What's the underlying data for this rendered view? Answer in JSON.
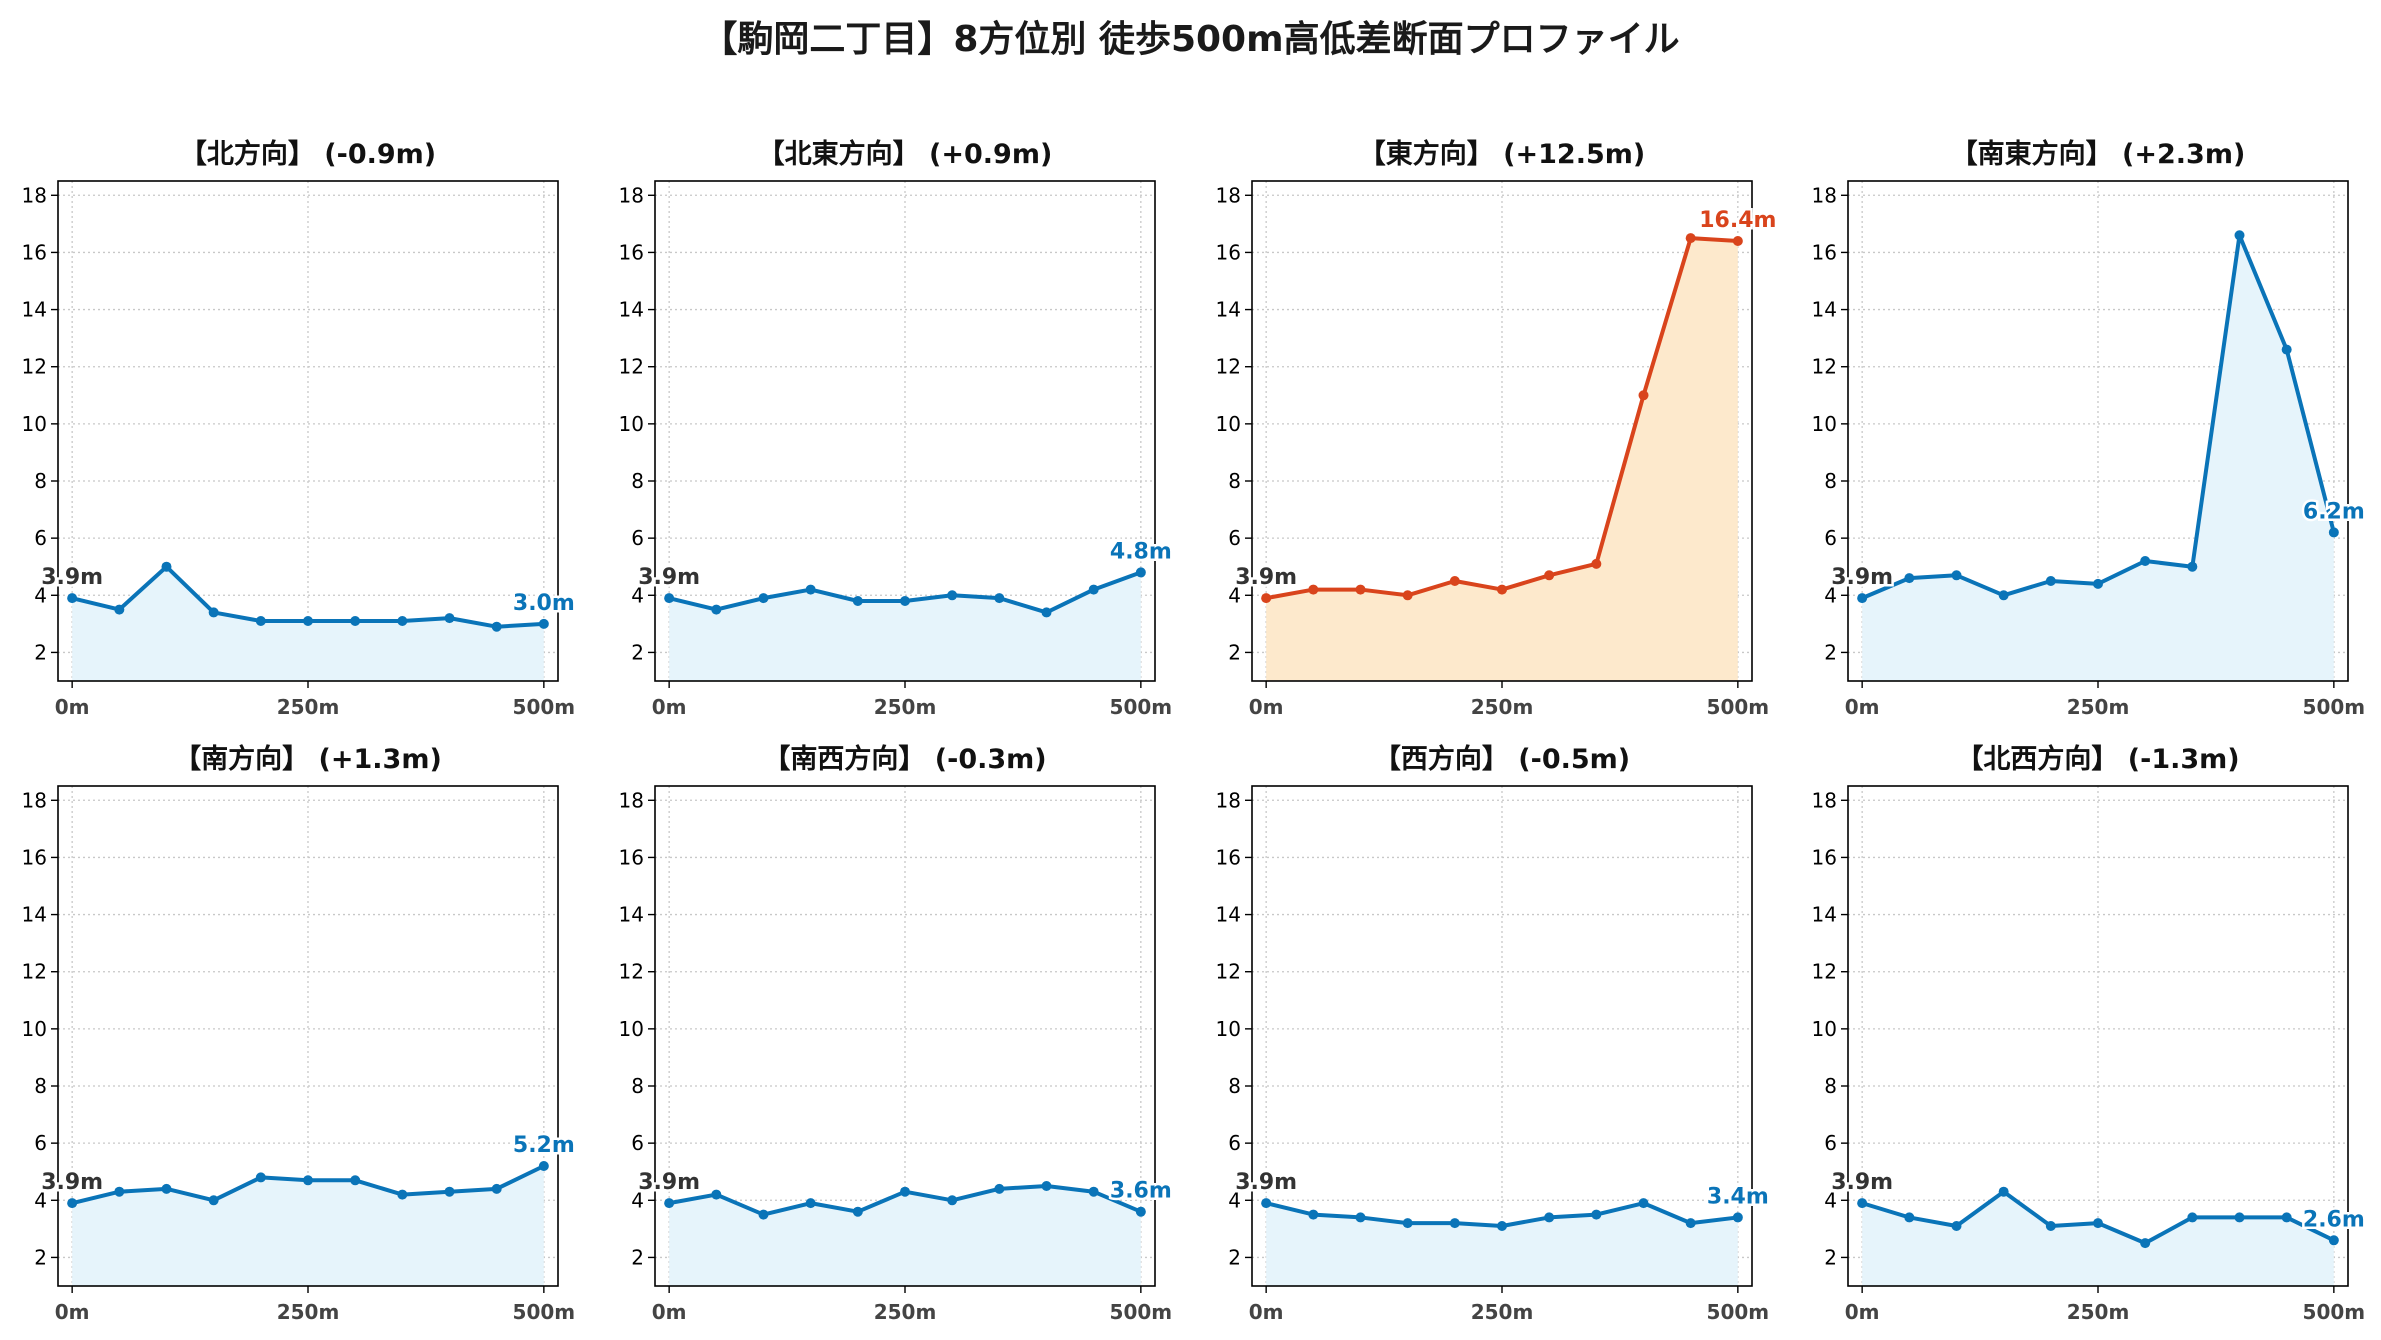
{
  "title": "【駒岡二丁目】8方位別 徒歩500m高低差断面プロファイル",
  "colors": {
    "normal_line": "#0a74b8",
    "normal_fill": "#e6f4fb",
    "highlight_line": "#d9441c",
    "highlight_fill": "#fde9cc",
    "start_label": "#333333",
    "axis": "#000000",
    "grid": "#c8c8c8",
    "tick_label": "#444444"
  },
  "chart_data": [
    {
      "type": "area",
      "title": "【北方向】 (-0.9m)",
      "x": [
        0,
        50,
        100,
        150,
        200,
        250,
        300,
        350,
        400,
        450,
        500
      ],
      "y": [
        3.9,
        3.5,
        5.0,
        3.4,
        3.1,
        3.1,
        3.1,
        3.1,
        3.2,
        2.9,
        3.0
      ],
      "start_label": "3.9m",
      "end_label": "3.0m",
      "highlight": false,
      "xticks": [
        "0m",
        "250m",
        "500m"
      ],
      "yticks": [
        2,
        4,
        6,
        8,
        10,
        12,
        14,
        16,
        18
      ],
      "xlim": [
        -15,
        515
      ],
      "ylim": [
        1.0,
        18.5
      ],
      "grid": true
    },
    {
      "type": "area",
      "title": "【北東方向】 (+0.9m)",
      "x": [
        0,
        50,
        100,
        150,
        200,
        250,
        300,
        350,
        400,
        450,
        500
      ],
      "y": [
        3.9,
        3.5,
        3.9,
        4.2,
        3.8,
        3.8,
        4.0,
        3.9,
        3.4,
        4.2,
        4.8
      ],
      "start_label": "3.9m",
      "end_label": "4.8m",
      "highlight": false,
      "xticks": [
        "0m",
        "250m",
        "500m"
      ],
      "yticks": [
        2,
        4,
        6,
        8,
        10,
        12,
        14,
        16,
        18
      ],
      "xlim": [
        -15,
        515
      ],
      "ylim": [
        1.0,
        18.5
      ],
      "grid": true
    },
    {
      "type": "area",
      "title": "【東方向】 (+12.5m)",
      "x": [
        0,
        50,
        100,
        150,
        200,
        250,
        300,
        350,
        400,
        450,
        500
      ],
      "y": [
        3.9,
        4.2,
        4.2,
        4.0,
        4.5,
        4.2,
        4.7,
        5.1,
        11.0,
        16.5,
        16.4
      ],
      "start_label": "3.9m",
      "end_label": "16.4m",
      "highlight": true,
      "xticks": [
        "0m",
        "250m",
        "500m"
      ],
      "yticks": [
        2,
        4,
        6,
        8,
        10,
        12,
        14,
        16,
        18
      ],
      "xlim": [
        -15,
        515
      ],
      "ylim": [
        1.0,
        18.5
      ],
      "grid": true
    },
    {
      "type": "area",
      "title": "【南東方向】 (+2.3m)",
      "x": [
        0,
        50,
        100,
        150,
        200,
        250,
        300,
        350,
        400,
        450,
        500
      ],
      "y": [
        3.9,
        4.6,
        4.7,
        4.0,
        4.5,
        4.4,
        5.2,
        5.0,
        16.6,
        12.6,
        6.2
      ],
      "start_label": "3.9m",
      "end_label": "6.2m",
      "highlight": false,
      "xticks": [
        "0m",
        "250m",
        "500m"
      ],
      "yticks": [
        2,
        4,
        6,
        8,
        10,
        12,
        14,
        16,
        18
      ],
      "xlim": [
        -15,
        515
      ],
      "ylim": [
        1.0,
        18.5
      ],
      "grid": true
    },
    {
      "type": "area",
      "title": "【南方向】 (+1.3m)",
      "x": [
        0,
        50,
        100,
        150,
        200,
        250,
        300,
        350,
        400,
        450,
        500
      ],
      "y": [
        3.9,
        4.3,
        4.4,
        4.0,
        4.8,
        4.7,
        4.7,
        4.2,
        4.3,
        4.4,
        5.2
      ],
      "start_label": "3.9m",
      "end_label": "5.2m",
      "highlight": false,
      "xticks": [
        "0m",
        "250m",
        "500m"
      ],
      "yticks": [
        2,
        4,
        6,
        8,
        10,
        12,
        14,
        16,
        18
      ],
      "xlim": [
        -15,
        515
      ],
      "ylim": [
        1.0,
        18.5
      ],
      "grid": true
    },
    {
      "type": "area",
      "title": "【南西方向】 (-0.3m)",
      "x": [
        0,
        50,
        100,
        150,
        200,
        250,
        300,
        350,
        400,
        450,
        500
      ],
      "y": [
        3.9,
        4.2,
        3.5,
        3.9,
        3.6,
        4.3,
        4.0,
        4.4,
        4.5,
        4.3,
        3.6
      ],
      "start_label": "3.9m",
      "end_label": "3.6m",
      "highlight": false,
      "xticks": [
        "0m",
        "250m",
        "500m"
      ],
      "yticks": [
        2,
        4,
        6,
        8,
        10,
        12,
        14,
        16,
        18
      ],
      "xlim": [
        -15,
        515
      ],
      "ylim": [
        1.0,
        18.5
      ],
      "grid": true
    },
    {
      "type": "area",
      "title": "【西方向】 (-0.5m)",
      "x": [
        0,
        50,
        100,
        150,
        200,
        250,
        300,
        350,
        400,
        450,
        500
      ],
      "y": [
        3.9,
        3.5,
        3.4,
        3.2,
        3.2,
        3.1,
        3.4,
        3.5,
        3.9,
        3.2,
        3.4
      ],
      "start_label": "3.9m",
      "end_label": "3.4m",
      "highlight": false,
      "xticks": [
        "0m",
        "250m",
        "500m"
      ],
      "yticks": [
        2,
        4,
        6,
        8,
        10,
        12,
        14,
        16,
        18
      ],
      "xlim": [
        -15,
        515
      ],
      "ylim": [
        1.0,
        18.5
      ],
      "grid": true
    },
    {
      "type": "area",
      "title": "【北西方向】 (-1.3m)",
      "x": [
        0,
        50,
        100,
        150,
        200,
        250,
        300,
        350,
        400,
        450,
        500
      ],
      "y": [
        3.9,
        3.4,
        3.1,
        4.3,
        3.1,
        3.2,
        2.5,
        3.4,
        3.4,
        3.4,
        2.6
      ],
      "start_label": "3.9m",
      "end_label": "2.6m",
      "highlight": false,
      "xticks": [
        "0m",
        "250m",
        "500m"
      ],
      "yticks": [
        2,
        4,
        6,
        8,
        10,
        12,
        14,
        16,
        18
      ],
      "xlim": [
        -15,
        515
      ],
      "ylim": [
        1.0,
        18.5
      ],
      "grid": true
    }
  ]
}
